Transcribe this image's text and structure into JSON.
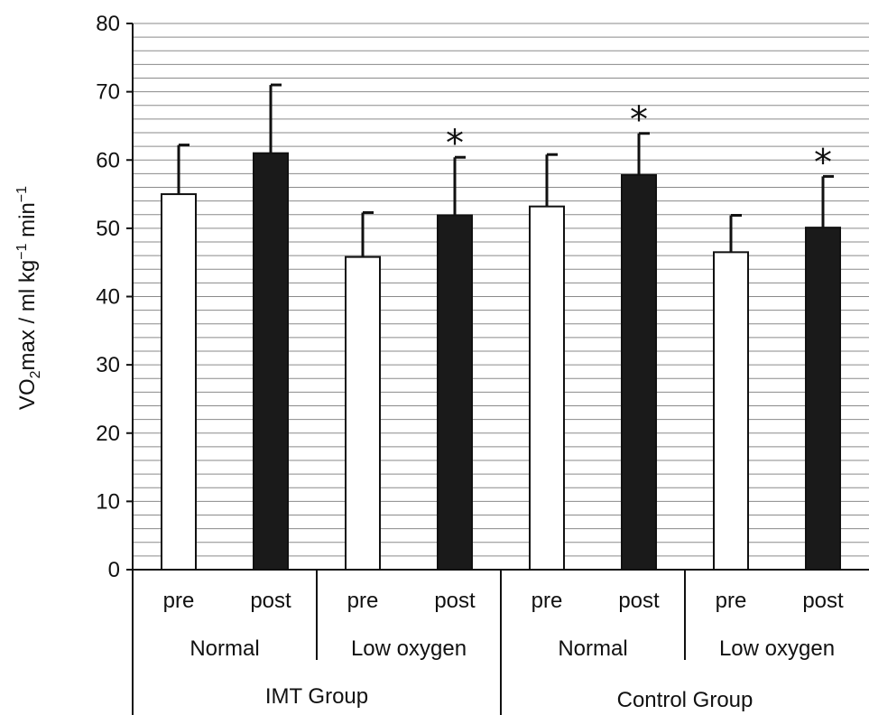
{
  "chart_data": {
    "type": "bar",
    "ylabel_parts": {
      "prefix": "VO",
      "subscript": "2",
      "middle": "max / ml kg",
      "sup1": "−1",
      "mid2": " min",
      "sup2": "−1"
    },
    "ylim": [
      0,
      80
    ],
    "yticks": [
      0,
      10,
      20,
      30,
      40,
      50,
      60,
      70,
      80
    ],
    "minor_grid_step": 2,
    "grid": true,
    "series": [
      {
        "name": "pre",
        "fill": "#ffffff"
      },
      {
        "name": "post",
        "fill": "#1a1a1a"
      }
    ],
    "groups": [
      {
        "label": "IMT Group",
        "conditions": [
          {
            "label": "Normal",
            "bars": [
              {
                "label": "pre",
                "value": 55,
                "err_high": 62.2,
                "star": false
              },
              {
                "label": "post",
                "value": 61,
                "err_high": 71,
                "star": false
              }
            ]
          },
          {
            "label": "Low oxygen",
            "bars": [
              {
                "label": "pre",
                "value": 45.8,
                "err_high": 52.3,
                "star": false
              },
              {
                "label": "post",
                "value": 51.9,
                "err_high": 60.4,
                "star": true
              }
            ]
          }
        ]
      },
      {
        "label": "Control Group",
        "conditions": [
          {
            "label": "Normal",
            "bars": [
              {
                "label": "pre",
                "value": 53.2,
                "err_high": 60.8,
                "star": false
              },
              {
                "label": "post",
                "value": 57.8,
                "err_high": 63.9,
                "star": true
              }
            ]
          },
          {
            "label": "Low oxygen",
            "bars": [
              {
                "label": "pre",
                "value": 46.5,
                "err_high": 51.9,
                "star": false
              },
              {
                "label": "post",
                "value": 50.1,
                "err_high": 57.6,
                "star": true
              }
            ]
          }
        ]
      }
    ],
    "star_symbol": "*"
  }
}
